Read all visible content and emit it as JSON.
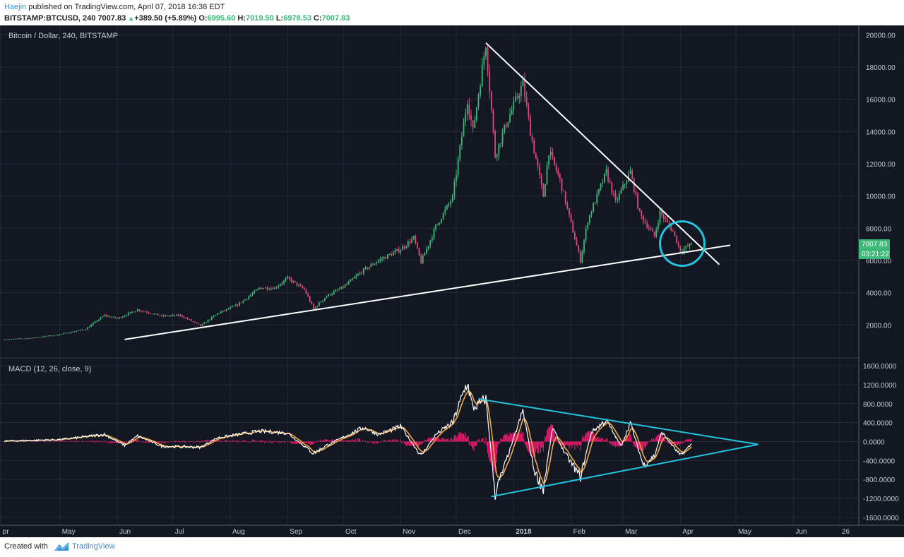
{
  "header": {
    "author": "Haejin",
    "published_text": " published on TradingView.com, April 07, 2018 16:38 EDT",
    "symbol_line": {
      "symbol": "BITSTAMP:BTCUSD, 240",
      "last": "7007.83",
      "change": "+389.50 (+5.89%)",
      "o_label": "O:",
      "o": "6995.60",
      "h_label": "H:",
      "h": "7019.50",
      "l_label": "L:",
      "l": "6978.53",
      "c_label": "C:",
      "c": "7007.83"
    }
  },
  "footer": {
    "created_with": "Created with",
    "brand": "TradingView"
  },
  "chart_data": [
    {
      "type": "candlestick",
      "legend": "Bitcoin / Dollar, 240, BITSTAMP",
      "ylim": [
        0,
        20500
      ],
      "y_ticks": [
        2000,
        4000,
        6000,
        8000,
        10000,
        12000,
        14000,
        16000,
        18000,
        20000
      ],
      "y_tick_labels": [
        "2000.00",
        "4000.00",
        "6000.00",
        "8000.00",
        "10000.00",
        "12000.00",
        "14000.00",
        "16000.00",
        "18000.00",
        "20000.00"
      ],
      "x_labels": [
        "pr",
        "May",
        "Jun",
        "Jul",
        "Aug",
        "Sep",
        "Oct",
        "Nov",
        "Dec",
        "2018",
        "Feb",
        "Mar",
        "Apr",
        "May",
        "Jun",
        "26"
      ],
      "close_series": [
        [
          "2017-04-01",
          1090
        ],
        [
          "2017-04-15",
          1180
        ],
        [
          "2017-05-01",
          1410
        ],
        [
          "2017-05-15",
          1750
        ],
        [
          "2017-05-25",
          2600
        ],
        [
          "2017-06-01",
          2400
        ],
        [
          "2017-06-12",
          2950
        ],
        [
          "2017-06-25",
          2550
        ],
        [
          "2017-07-05",
          2600
        ],
        [
          "2017-07-16",
          1950
        ],
        [
          "2017-07-25",
          2700
        ],
        [
          "2017-08-05",
          3250
        ],
        [
          "2017-08-17",
          4300
        ],
        [
          "2017-08-25",
          4300
        ],
        [
          "2017-09-01",
          4900
        ],
        [
          "2017-09-10",
          4200
        ],
        [
          "2017-09-15",
          3000
        ],
        [
          "2017-09-22",
          3800
        ],
        [
          "2017-10-01",
          4350
        ],
        [
          "2017-10-12",
          5400
        ],
        [
          "2017-10-20",
          6000
        ],
        [
          "2017-11-01",
          6700
        ],
        [
          "2017-11-08",
          7400
        ],
        [
          "2017-11-12",
          5900
        ],
        [
          "2017-11-20",
          8100
        ],
        [
          "2017-11-29",
          9900
        ],
        [
          "2017-12-07",
          16000
        ],
        [
          "2017-12-10",
          14000
        ],
        [
          "2017-12-17",
          19500
        ],
        [
          "2017-12-22",
          12500
        ],
        [
          "2017-12-28",
          14500
        ],
        [
          "2018-01-06",
          17000
        ],
        [
          "2018-01-10",
          14000
        ],
        [
          "2018-01-17",
          10000
        ],
        [
          "2018-01-20",
          12800
        ],
        [
          "2018-01-26",
          11000
        ],
        [
          "2018-02-06",
          6000
        ],
        [
          "2018-02-10",
          8500
        ],
        [
          "2018-02-20",
          11500
        ],
        [
          "2018-02-25",
          9600
        ],
        [
          "2018-03-05",
          11500
        ],
        [
          "2018-03-10",
          8900
        ],
        [
          "2018-03-18",
          7500
        ],
        [
          "2018-03-21",
          9000
        ],
        [
          "2018-03-28",
          7800
        ],
        [
          "2018-04-01",
          6600
        ],
        [
          "2018-04-07",
          7007.83
        ]
      ],
      "last_price": "7007.83",
      "countdown": "03:21:22",
      "annotations": [
        {
          "type": "trendline",
          "color": "#ffffff",
          "from": [
            "2017-06-05",
            1100
          ],
          "to": [
            "2018-04-28",
            6950
          ]
        },
        {
          "type": "trendline",
          "color": "#ffffff",
          "from": [
            "2017-12-17",
            19500
          ],
          "to": [
            "2018-04-22",
            5750
          ]
        },
        {
          "type": "circle",
          "color": "#22c4dd",
          "center": [
            "2018-04-02",
            7050
          ],
          "radius_days": 4.8
        }
      ]
    },
    {
      "type": "line",
      "legend": "MACD (12, 26, close, 9)",
      "ylim": [
        -1750,
        1750
      ],
      "y_ticks": [
        -1600,
        -1200,
        -800,
        -400,
        0,
        400,
        800,
        1200,
        1600
      ],
      "y_tick_labels": [
        "-1600.0000",
        "-1200.0000",
        "-800.0000",
        "-400.0000",
        "0.0000",
        "400.0000",
        "800.0000",
        "1200.0000",
        "1600.0000"
      ],
      "series": [
        {
          "color": "#ffffff",
          "points": [
            [
              "2017-04-01",
              10
            ],
            [
              "2017-05-01",
              40
            ],
            [
              "2017-05-25",
              150
            ],
            [
              "2017-06-05",
              -80
            ],
            [
              "2017-06-12",
              120
            ],
            [
              "2017-06-25",
              -100
            ],
            [
              "2017-07-16",
              -120
            ],
            [
              "2017-07-25",
              80
            ],
            [
              "2017-08-17",
              220
            ],
            [
              "2017-09-01",
              180
            ],
            [
              "2017-09-15",
              -250
            ],
            [
              "2017-09-22",
              -80
            ],
            [
              "2017-10-12",
              300
            ],
            [
              "2017-10-20",
              150
            ],
            [
              "2017-11-01",
              320
            ],
            [
              "2017-11-12",
              -300
            ],
            [
              "2017-11-20",
              150
            ],
            [
              "2017-11-29",
              400
            ],
            [
              "2017-12-07",
              1250
            ],
            [
              "2017-12-10",
              700
            ],
            [
              "2017-12-17",
              900
            ],
            [
              "2017-12-22",
              -1100
            ],
            [
              "2017-12-28",
              -400
            ],
            [
              "2018-01-06",
              650
            ],
            [
              "2018-01-12",
              -600
            ],
            [
              "2018-01-17",
              -1000
            ],
            [
              "2018-01-22",
              300
            ],
            [
              "2018-01-28",
              -200
            ],
            [
              "2018-02-06",
              -750
            ],
            [
              "2018-02-12",
              200
            ],
            [
              "2018-02-20",
              450
            ],
            [
              "2018-02-28",
              -100
            ],
            [
              "2018-03-05",
              400
            ],
            [
              "2018-03-12",
              -500
            ],
            [
              "2018-03-18",
              -300
            ],
            [
              "2018-03-22",
              200
            ],
            [
              "2018-03-28",
              -100
            ],
            [
              "2018-04-01",
              -300
            ],
            [
              "2018-04-07",
              -50
            ]
          ]
        }
      ],
      "annotations": [
        {
          "type": "trendline",
          "color": "#22c4dd",
          "from": [
            "2017-12-13",
            900
          ],
          "to": [
            "2018-05-13",
            -60
          ]
        },
        {
          "type": "trendline",
          "color": "#22c4dd",
          "from": [
            "2017-12-20",
            -1160
          ],
          "to": [
            "2018-05-13",
            -60
          ]
        }
      ]
    }
  ]
}
